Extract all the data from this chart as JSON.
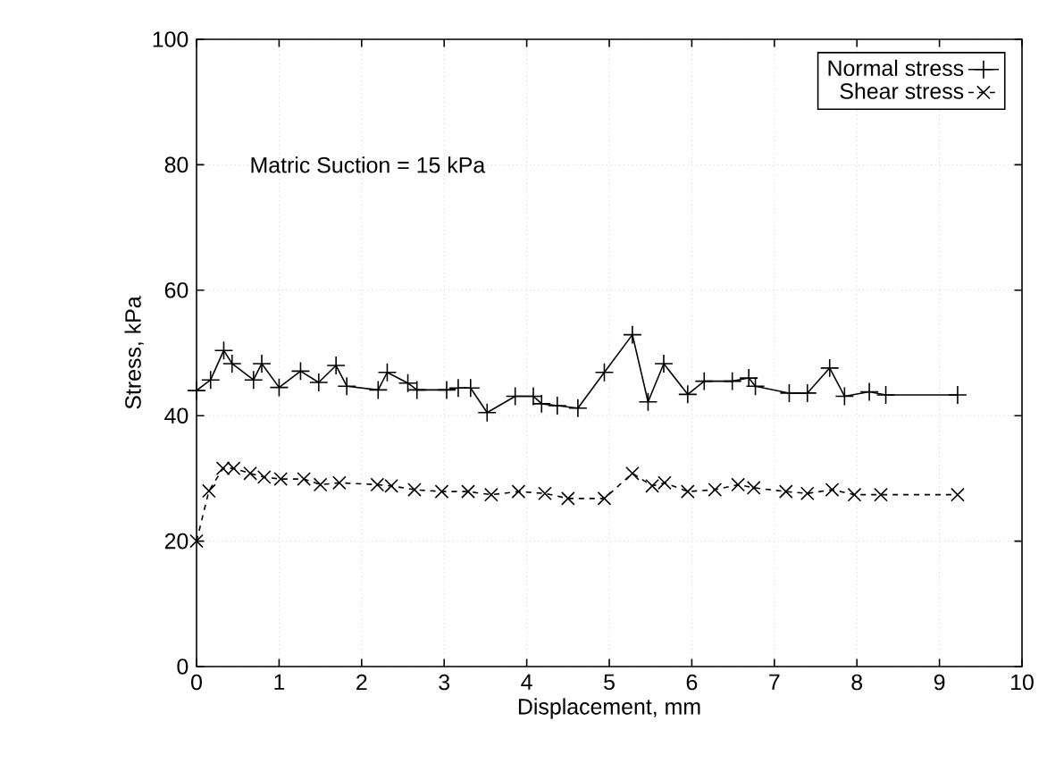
{
  "chart_data": {
    "type": "line",
    "xlabel": "Displacement, mm",
    "ylabel": "Stress, kPa",
    "annotations": [
      "Matric Suction = 15 kPa"
    ],
    "xlim": [
      0,
      10
    ],
    "ylim": [
      0,
      100
    ],
    "xticks": [
      0,
      1,
      2,
      3,
      4,
      5,
      6,
      7,
      8,
      9,
      10
    ],
    "yticks": [
      0,
      20,
      40,
      60,
      80,
      100
    ],
    "grid": true,
    "legend": "top right",
    "series": [
      {
        "name": "Normal stress",
        "color": "#000000",
        "marker": "plus",
        "line_style": "solid",
        "x": [
          0,
          0.17,
          0.33,
          0.43,
          0.69,
          0.79,
          1.0,
          1.26,
          1.48,
          1.69,
          1.82,
          2.2,
          2.31,
          2.56,
          2.67,
          3.03,
          3.17,
          3.32,
          3.52,
          3.86,
          4.08,
          4.18,
          4.37,
          4.62,
          4.94,
          5.28,
          5.47,
          5.66,
          5.95,
          6.15,
          6.49,
          6.69,
          6.77,
          7.18,
          7.4,
          7.67,
          7.85,
          8.15,
          8.35,
          9.22
        ],
        "values": [
          44,
          45.7,
          50.4,
          48.3,
          45.7,
          48.3,
          44.5,
          47.1,
          45.3,
          48,
          44.7,
          44.1,
          46.9,
          45.2,
          44.1,
          44.1,
          44.4,
          44.4,
          40.5,
          43.1,
          43.1,
          41.9,
          41.6,
          41.2,
          46.9,
          52.9,
          42.2,
          48.3,
          43.4,
          45.5,
          45.5,
          46,
          44.7,
          43.6,
          43.6,
          47.6,
          43.1,
          43.8,
          43.3,
          43.3
        ]
      },
      {
        "name": "Shear stress",
        "color": "#000000",
        "marker": "cross",
        "line_style": "dashed",
        "x": [
          0,
          0.15,
          0.32,
          0.45,
          0.65,
          0.82,
          1.02,
          1.3,
          1.5,
          1.73,
          2.19,
          2.36,
          2.64,
          2.97,
          3.29,
          3.57,
          3.9,
          4.22,
          4.5,
          4.94,
          5.28,
          5.52,
          5.67,
          5.95,
          6.28,
          6.56,
          6.75,
          7.14,
          7.4,
          7.7,
          7.97,
          8.29,
          9.22
        ],
        "values": [
          20,
          28,
          31.6,
          31.6,
          30.8,
          30.2,
          29.9,
          29.9,
          29,
          29.3,
          29,
          28.8,
          28.2,
          27.9,
          27.9,
          27.4,
          27.9,
          27.6,
          26.8,
          26.8,
          30.8,
          28.8,
          29.3,
          27.9,
          28.2,
          29,
          28.5,
          27.9,
          27.6,
          28.2,
          27.4,
          27.4,
          27.4
        ]
      }
    ]
  }
}
